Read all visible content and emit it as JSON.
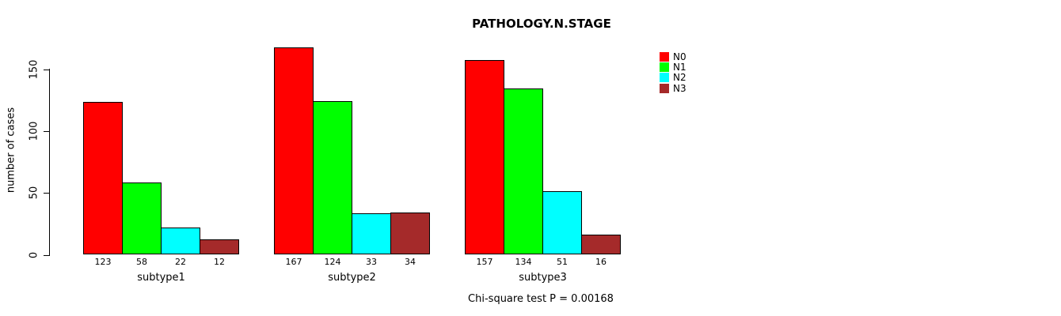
{
  "chart_data": {
    "type": "bar",
    "grouped": true,
    "title": "PATHOLOGY.N.STAGE",
    "ylabel": "number of cases",
    "xlabel": "",
    "categories": [
      "subtype1",
      "subtype2",
      "subtype3"
    ],
    "series": [
      {
        "name": "N0",
        "color": "#FF0000",
        "values": [
          123,
          167,
          157
        ]
      },
      {
        "name": "N1",
        "color": "#00FF00",
        "values": [
          58,
          124,
          134
        ]
      },
      {
        "name": "N2",
        "color": "#00FFFF",
        "values": [
          22,
          33,
          51
        ]
      },
      {
        "name": "N3",
        "color": "#A52A2A",
        "values": [
          12,
          34,
          16
        ]
      }
    ],
    "bar_value_labels": [
      [
        "123",
        "58",
        "22",
        "12"
      ],
      [
        "167",
        "124",
        "33",
        "34"
      ],
      [
        "157",
        "134",
        "51",
        "16"
      ]
    ],
    "ylim": [
      0,
      167
    ],
    "yticks": [
      0,
      50,
      100,
      150
    ],
    "grid": false,
    "legend_position": "top-right",
    "legend_entries": [
      "N0",
      "N1",
      "N2",
      "N3"
    ],
    "annotation": "Chi-square test P = 0.00168",
    "bar_border_color": "#000000",
    "background_color": "#FFFFFF"
  }
}
